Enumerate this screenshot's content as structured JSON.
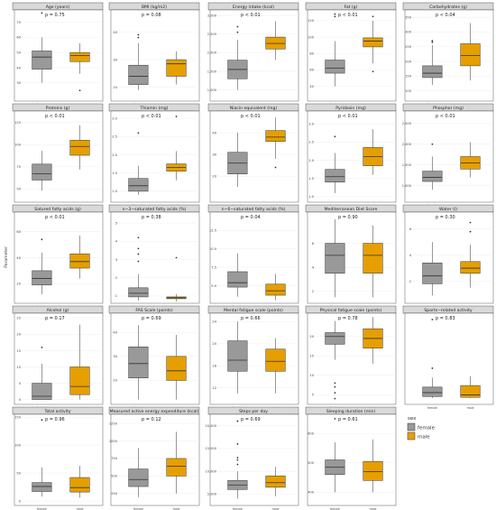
{
  "figure": {
    "ylabel": "Parameter",
    "legend": {
      "title": "sex",
      "items": [
        {
          "label": "female",
          "color": "#999999"
        },
        {
          "label": "male",
          "color": "#E69F00"
        }
      ]
    }
  },
  "chart_data": [
    {
      "type": "box",
      "title": "Age (years)",
      "pvalue": "p = 0.75",
      "yticks": [
        "30",
        "40",
        "50",
        "60",
        "70"
      ],
      "ylim": [
        18,
        78
      ],
      "categories": [
        "female",
        "male"
      ],
      "series": [
        {
          "name": "female",
          "whisker_low": 30,
          "q1": 39,
          "median": 47,
          "q3": 51,
          "whisker_high": 60,
          "outliers": [
            76
          ]
        },
        {
          "name": "male",
          "whisker_low": 36,
          "q1": 44,
          "median": 48,
          "q3": 50,
          "whisker_high": 56,
          "outliers": [
            25
          ]
        }
      ]
    },
    {
      "type": "box",
      "title": "BMI (kg/m2)",
      "pvalue": "p = 0.08",
      "yticks": [
        "20",
        "30",
        "40"
      ],
      "ylim": [
        15,
        48
      ],
      "categories": [
        "female",
        "male"
      ],
      "series": [
        {
          "name": "female",
          "whisker_low": 19,
          "q1": 21,
          "median": 24,
          "q3": 28,
          "whisker_high": 36,
          "outliers": [
            38,
            39
          ]
        },
        {
          "name": "male",
          "whisker_low": 21,
          "q1": 24,
          "median": 28.5,
          "q3": 30,
          "whisker_high": 33,
          "outliers": []
        }
      ]
    },
    {
      "type": "box",
      "title": "Energy intake (kcal)",
      "pvalue": "p < 0.01",
      "yticks": [
        "1,000",
        "1,500",
        "2,000",
        "2,500",
        "3,000"
      ],
      "ylim": [
        700,
        3150
      ],
      "categories": [
        "female",
        "male"
      ],
      "series": [
        {
          "name": "female",
          "whisker_low": 1000,
          "q1": 1300,
          "median": 1550,
          "q3": 1800,
          "whisker_high": 2350,
          "outliers": [
            2550,
            2700
          ]
        },
        {
          "name": "male",
          "whisker_low": 1800,
          "q1": 2100,
          "median": 2250,
          "q3": 2420,
          "whisker_high": 2850,
          "outliers": []
        }
      ]
    },
    {
      "type": "box",
      "title": "Fat (g)",
      "pvalue": "p < 0.01",
      "yticks": [
        "40",
        "60",
        "80",
        "100",
        "120"
      ],
      "ylim": [
        22,
        133
      ],
      "categories": [
        "female",
        "male"
      ],
      "series": [
        {
          "name": "female",
          "whisker_low": 40,
          "q1": 56,
          "median": 62,
          "q3": 72,
          "whisker_high": 95,
          "outliers": [
            125,
            128
          ]
        },
        {
          "name": "male",
          "whisker_low": 68,
          "q1": 88,
          "median": 95,
          "q3": 99,
          "whisker_high": 120,
          "outliers": [
            58,
            125
          ]
        }
      ]
    },
    {
      "type": "box",
      "title": "Carbohydrates (g)",
      "pvalue": "p < 0.04",
      "yticks": [
        "100",
        "150",
        "200",
        "250",
        "300",
        "350"
      ],
      "ylim": [
        65,
        375
      ],
      "categories": [
        "female",
        "male"
      ],
      "series": [
        {
          "name": "female",
          "whisker_low": 120,
          "q1": 145,
          "median": 160,
          "q3": 185,
          "whisker_high": 255,
          "outliers": [
            265,
            270
          ]
        },
        {
          "name": "male",
          "whisker_low": 135,
          "q1": 185,
          "median": 220,
          "q3": 260,
          "whisker_high": 330,
          "outliers": []
        }
      ]
    },
    {
      "type": "box",
      "title": "Proteins (g)",
      "pvalue": "p < 0.01",
      "yticks": [
        "50",
        "75",
        "100",
        "125"
      ],
      "ylim": [
        35,
        138
      ],
      "categories": [
        "female",
        "male"
      ],
      "series": [
        {
          "name": "female",
          "whisker_low": 48,
          "q1": 60,
          "median": 67,
          "q3": 78,
          "whisker_high": 93,
          "outliers": []
        },
        {
          "name": "male",
          "whisker_low": 72,
          "q1": 88,
          "median": 98,
          "q3": 105,
          "whisker_high": 122,
          "outliers": []
        }
      ]
    },
    {
      "type": "box",
      "title": "Thiamin (mg)",
      "pvalue": "p < 0.01",
      "yticks": [
        "1.0",
        "1.5",
        "2.0",
        "2.5",
        "3.0"
      ],
      "ylim": [
        0.7,
        3.2
      ],
      "categories": [
        "female",
        "male"
      ],
      "series": [
        {
          "name": "female",
          "whisker_low": 0.9,
          "q1": 1.0,
          "median": 1.15,
          "q3": 1.35,
          "whisker_high": 1.7,
          "outliers": [
            2.6
          ]
        },
        {
          "name": "male",
          "whisker_low": 1.3,
          "q1": 1.55,
          "median": 1.65,
          "q3": 1.75,
          "whisker_high": 2.1,
          "outliers": [
            3.05
          ]
        }
      ]
    },
    {
      "type": "box",
      "title": "Niacin equivalent (mg)",
      "pvalue": "p < 0.01",
      "yticks": [
        "20",
        "30",
        "40"
      ],
      "ylim": [
        8,
        50
      ],
      "categories": [
        "female",
        "male"
      ],
      "series": [
        {
          "name": "female",
          "whisker_low": 15,
          "q1": 21,
          "median": 26,
          "q3": 31,
          "whisker_high": 40,
          "outliers": []
        },
        {
          "name": "male",
          "whisker_low": 28,
          "q1": 36,
          "median": 38,
          "q3": 41,
          "whisker_high": 47,
          "outliers": [
            24
          ]
        }
      ]
    },
    {
      "type": "box",
      "title": "Pyridoxin (mg)",
      "pvalue": "p < 0.01",
      "yticks": [
        "1.0",
        "1.5",
        "2.0",
        "2.5",
        "3.0"
      ],
      "ylim": [
        0.85,
        3.35
      ],
      "categories": [
        "female",
        "male"
      ],
      "series": [
        {
          "name": "female",
          "whisker_low": 1.1,
          "q1": 1.4,
          "median": 1.55,
          "q3": 1.75,
          "whisker_high": 2.2,
          "outliers": [
            2.65
          ]
        },
        {
          "name": "male",
          "whisker_low": 1.6,
          "q1": 1.85,
          "median": 2.1,
          "q3": 2.35,
          "whisker_high": 2.85,
          "outliers": []
        }
      ]
    },
    {
      "type": "box",
      "title": "Phosphor (mg)",
      "pvalue": "p < 0.01",
      "yticks": [
        "1,000",
        "1,500",
        "2,000",
        "2,500"
      ],
      "ylim": [
        600,
        2800
      ],
      "categories": [
        "female",
        "male"
      ],
      "series": [
        {
          "name": "female",
          "whisker_low": 900,
          "q1": 1100,
          "median": 1200,
          "q3": 1350,
          "whisker_high": 1700,
          "outliers": [
            2000
          ]
        },
        {
          "name": "male",
          "whisker_low": 1200,
          "q1": 1400,
          "median": 1550,
          "q3": 1700,
          "whisker_high": 2050,
          "outliers": []
        }
      ]
    },
    {
      "type": "box",
      "title": "Satured fatty acids (g)",
      "pvalue": "p < 0.01",
      "yticks": [
        "20",
        "40",
        "60"
      ],
      "ylim": [
        5,
        75
      ],
      "categories": [
        "female",
        "male"
      ],
      "series": [
        {
          "name": "female",
          "whisker_low": 12,
          "q1": 19,
          "median": 24,
          "q3": 30,
          "whisker_high": 44,
          "outliers": [
            54
          ]
        },
        {
          "name": "male",
          "whisker_low": 24,
          "q1": 32,
          "median": 37,
          "q3": 43,
          "whisker_high": 57,
          "outliers": []
        }
      ]
    },
    {
      "type": "box",
      "title": "n−3−saturated fatty acids (%)",
      "pvalue": "p = 0.38",
      "yticks": [
        "1",
        "2",
        "3",
        "4",
        "5"
      ],
      "ylim": [
        0.6,
        5.6
      ],
      "categories": [
        "female",
        "male"
      ],
      "series": [
        {
          "name": "female",
          "whisker_low": 0.75,
          "q1": 0.95,
          "median": 1.15,
          "q3": 1.45,
          "whisker_high": 2.2,
          "outliers": [
            2.9,
            3.3,
            3.6,
            4.2
          ]
        },
        {
          "name": "male",
          "whisker_low": 0.7,
          "q1": 0.85,
          "median": 0.9,
          "q3": 0.95,
          "whisker_high": 1.1,
          "outliers": [
            3.1
          ]
        }
      ]
    },
    {
      "type": "box",
      "title": "n−6−saturated fatty acids (%)",
      "pvalue": "p = 0.04",
      "yticks": [
        "5.0",
        "7.5",
        "10.0",
        "12.5"
      ],
      "ylim": [
        2.6,
        15
      ],
      "categories": [
        "female",
        "male"
      ],
      "series": [
        {
          "name": "female",
          "whisker_low": 3.5,
          "q1": 4.8,
          "median": 5.4,
          "q3": 6.9,
          "whisker_high": 9.4,
          "outliers": []
        },
        {
          "name": "male",
          "whisker_low": 3.0,
          "q1": 3.7,
          "median": 4.3,
          "q3": 5.2,
          "whisker_high": 6.6,
          "outliers": []
        }
      ]
    },
    {
      "type": "box",
      "title": "Mediterranean Diet Score",
      "pvalue": "p = 0.90",
      "yticks": [
        "2",
        "4",
        "6"
      ],
      "ylim": [
        1,
        8.6
      ],
      "categories": [
        "female",
        "male"
      ],
      "series": [
        {
          "name": "female",
          "whisker_low": 1.5,
          "q1": 3.5,
          "median": 5,
          "q3": 6,
          "whisker_high": 8,
          "outliers": []
        },
        {
          "name": "male",
          "whisker_low": 1.5,
          "q1": 3.5,
          "median": 5,
          "q3": 6,
          "whisker_high": 7.5,
          "outliers": []
        }
      ]
    },
    {
      "type": "box",
      "title": "Water (l)",
      "pvalue": "p = 0.30",
      "yticks": [
        "2",
        "4",
        "6"
      ],
      "ylim": [
        0.3,
        7.3
      ],
      "categories": [
        "female",
        "male"
      ],
      "series": [
        {
          "name": "female",
          "whisker_low": 0.9,
          "q1": 1.8,
          "median": 2.4,
          "q3": 3.4,
          "whisker_high": 5.0,
          "outliers": []
        },
        {
          "name": "male",
          "whisker_low": 1.5,
          "q1": 2.6,
          "median": 3.0,
          "q3": 3.5,
          "whisker_high": 4.8,
          "outliers": [
            5.8,
            6.5
          ]
        }
      ]
    },
    {
      "type": "box",
      "title": "Alcohol (g)",
      "pvalue": "p = 0.17",
      "yticks": [
        "0",
        "5",
        "10",
        "15",
        "20",
        "25"
      ],
      "ylim": [
        -1.5,
        26.5
      ],
      "categories": [
        "female",
        "male"
      ],
      "series": [
        {
          "name": "female",
          "whisker_low": 0,
          "q1": 0,
          "median": 1,
          "q3": 5,
          "whisker_high": 11,
          "outliers": [
            16
          ]
        },
        {
          "name": "male",
          "whisker_low": 0,
          "q1": 1.5,
          "median": 4,
          "q3": 10,
          "whisker_high": 23,
          "outliers": []
        }
      ]
    },
    {
      "type": "box",
      "title": "FAS Scale (points)",
      "pvalue": "p = 0.69",
      "yticks": [
        "20",
        "30",
        "40"
      ],
      "ylim": [
        10,
        48
      ],
      "categories": [
        "female",
        "male"
      ],
      "series": [
        {
          "name": "female",
          "whisker_low": 12,
          "q1": 21,
          "median": 27,
          "q3": 34,
          "whisker_high": 43,
          "outliers": []
        },
        {
          "name": "male",
          "whisker_low": 12,
          "q1": 20,
          "median": 24,
          "q3": 30,
          "whisker_high": 39,
          "outliers": []
        }
      ]
    },
    {
      "type": "box",
      "title": "Mental fatigue scale (points)",
      "pvalue": "p = 0.66",
      "yticks": [
        "12",
        "16",
        "20",
        "24"
      ],
      "ylim": [
        9,
        25.5
      ],
      "categories": [
        "female",
        "male"
      ],
      "series": [
        {
          "name": "female",
          "whisker_low": 11,
          "q1": 15,
          "median": 17,
          "q3": 20.5,
          "whisker_high": 24,
          "outliers": []
        },
        {
          "name": "male",
          "whisker_low": 11,
          "q1": 15,
          "median": 16.8,
          "q3": 19,
          "whisker_high": 21,
          "outliers": []
        }
      ]
    },
    {
      "type": "box",
      "title": "Physical fatigue scale (points)",
      "pvalue": "p = 0.78",
      "yticks": [
        "5",
        "10",
        "15",
        "20"
      ],
      "ylim": [
        2.5,
        26
      ],
      "categories": [
        "female",
        "male"
      ],
      "series": [
        {
          "name": "female",
          "whisker_low": 14,
          "q1": 18,
          "median": 20,
          "q3": 21,
          "whisker_high": 24,
          "outliers": [
            4,
            5.5,
            7,
            8
          ]
        },
        {
          "name": "male",
          "whisker_low": 13,
          "q1": 17,
          "median": 19.5,
          "q3": 22,
          "whisker_high": 25,
          "outliers": []
        }
      ]
    },
    {
      "type": "box",
      "title": "Sports−related activity",
      "pvalue": "p = 0.83",
      "yticks": [],
      "ylim": [
        -4,
        54
      ],
      "categories": [
        "female",
        "male"
      ],
      "series": [
        {
          "name": "female",
          "whisker_low": 0,
          "q1": 1,
          "median": 3.5,
          "q3": 7,
          "whisker_high": 13,
          "outliers": [
            19,
            50
          ]
        },
        {
          "name": "male",
          "whisker_low": 0,
          "q1": 0.5,
          "median": 2,
          "q3": 8,
          "whisker_high": 14,
          "outliers": []
        }
      ]
    },
    {
      "type": "box",
      "title": "Total activity",
      "pvalue": "p = 0.96",
      "yticks": [
        "0",
        "50",
        "100",
        "150"
      ],
      "ylim": [
        -8,
        155
      ],
      "categories": [
        "female",
        "male"
      ],
      "series": [
        {
          "name": "female",
          "whisker_low": 8,
          "q1": 17,
          "median": 26,
          "q3": 33,
          "whisker_high": 60,
          "outliers": [
            145
          ]
        },
        {
          "name": "male",
          "whisker_low": 6,
          "q1": 16,
          "median": 24,
          "q3": 42,
          "whisker_high": 63,
          "outliers": []
        }
      ]
    },
    {
      "type": "box",
      "title": "Measured active energy expenditure (kcal)",
      "pvalue": "p = 0.12",
      "yticks": [
        "250",
        "500",
        "750",
        "1000",
        "1250"
      ],
      "ylim": [
        80,
        1380
      ],
      "categories": [
        "female",
        "male"
      ],
      "series": [
        {
          "name": "female",
          "whisker_low": 200,
          "q1": 350,
          "median": 450,
          "q3": 600,
          "whisker_high": 900,
          "outliers": []
        },
        {
          "name": "male",
          "whisker_low": 250,
          "q1": 500,
          "median": 640,
          "q3": 750,
          "whisker_high": 1130,
          "outliers": []
        }
      ]
    },
    {
      "type": "box",
      "title": "Steps per day",
      "pvalue": "p = 0.69",
      "yticks": [
        "5,000",
        "10,000",
        "15,000",
        "20,000"
      ],
      "ylim": [
        2500,
        22500
      ],
      "categories": [
        "female",
        "male"
      ],
      "series": [
        {
          "name": "female",
          "whisker_low": 4000,
          "q1": 6000,
          "median": 7000,
          "q3": 8000,
          "whisker_high": 10000,
          "outliers": [
            11500,
            12500,
            13000,
            16000,
            21000
          ]
        },
        {
          "name": "male",
          "whisker_low": 4500,
          "q1": 6500,
          "median": 7500,
          "q3": 9000,
          "whisker_high": 11000,
          "outliers": []
        }
      ]
    },
    {
      "type": "box",
      "title": "Sleeping duration (min)",
      "pvalue": "p = 0.61",
      "yticks": [
        "400",
        "500",
        "600"
      ],
      "ylim": [
        355,
        665
      ],
      "categories": [
        "female",
        "male"
      ],
      "series": [
        {
          "name": "female",
          "whisker_low": 400,
          "q1": 460,
          "median": 485,
          "q3": 510,
          "whisker_high": 570,
          "outliers": [
            650
          ]
        },
        {
          "name": "male",
          "whisker_low": 400,
          "q1": 440,
          "median": 470,
          "q3": 505,
          "whisker_high": 580,
          "outliers": []
        }
      ]
    }
  ]
}
